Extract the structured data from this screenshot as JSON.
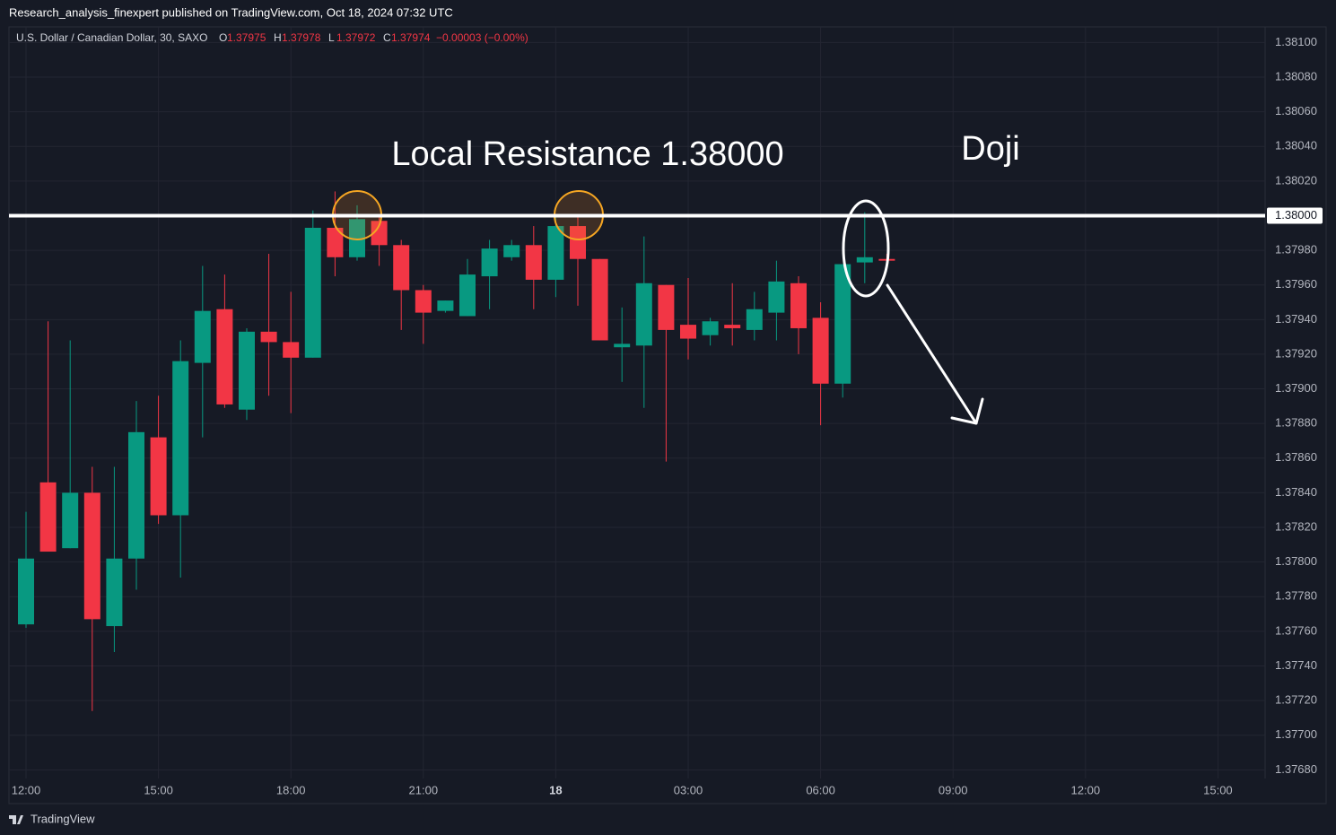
{
  "header": {
    "publisher": "Research_analysis_finexpert published on TradingView.com, Oct 18, 2024 07:32 UTC",
    "footer": "TradingView"
  },
  "chart_data": {
    "type": "candlestick",
    "symbol": "U.S. Dollar / Canadian Dollar, 30, SAXO",
    "ohlc_letters": [
      "O",
      "H",
      "L",
      "C"
    ],
    "change": "−0.00003 (−0.00%)",
    "annotations": [
      "Local Resistance 1.38000",
      "Doji"
    ],
    "resistance": {
      "value": 1.38,
      "label": "1.38000"
    },
    "up_color": "#089981",
    "down_color": "#f23645",
    "categories": [
      "12:00",
      null,
      null,
      null,
      null,
      null,
      "15:00",
      null,
      null,
      null,
      null,
      null,
      "18:00",
      null,
      null,
      null,
      null,
      null,
      "21:00",
      null,
      null,
      null,
      null,
      null,
      "18",
      null,
      null,
      null,
      null,
      null,
      "03:00",
      null,
      null,
      null,
      null,
      null,
      "06:00",
      null,
      null,
      null
    ],
    "future_labels": [
      "09:00",
      "12:00",
      "15:00"
    ],
    "open": [
      1.37764,
      1.37846,
      1.37808,
      1.3784,
      1.37763,
      1.37802,
      1.37872,
      1.37827,
      1.37915,
      1.37946,
      1.37888,
      1.37933,
      1.37927,
      1.37918,
      1.37993,
      1.37976,
      1.37997,
      1.37983,
      1.37957,
      1.37945,
      1.37942,
      1.37965,
      1.37976,
      1.37983,
      1.37963,
      1.37994,
      1.37975,
      1.37924,
      1.37925,
      1.3796,
      1.37937,
      1.37931,
      1.37937,
      1.37934,
      1.37944,
      1.37961,
      1.37941,
      1.37903,
      1.37973,
      1.37975
    ],
    "high": [
      1.37829,
      1.37939,
      1.37928,
      1.37855,
      1.37855,
      1.37893,
      1.37896,
      1.37928,
      1.37971,
      1.37966,
      1.37935,
      1.37978,
      1.37956,
      1.38003,
      1.38014,
      1.38006,
      1.38,
      1.37986,
      1.3796,
      1.37951,
      1.37975,
      1.37986,
      1.37986,
      1.37994,
      1.38,
      1.38001,
      1.37975,
      1.37947,
      1.37988,
      1.3796,
      1.37964,
      1.37941,
      1.37961,
      1.37956,
      1.37974,
      1.37965,
      1.3795,
      1.37972,
      1.38002,
      1.37978
    ],
    "low": [
      1.37762,
      1.37806,
      1.37808,
      1.37714,
      1.37748,
      1.37784,
      1.37822,
      1.37791,
      1.37872,
      1.37889,
      1.37882,
      1.37896,
      1.37886,
      1.37918,
      1.37965,
      1.37974,
      1.37971,
      1.37934,
      1.37926,
      1.37944,
      1.37942,
      1.37946,
      1.37974,
      1.37946,
      1.37953,
      1.37948,
      1.37928,
      1.37904,
      1.37889,
      1.37858,
      1.37917,
      1.37925,
      1.37925,
      1.37928,
      1.37928,
      1.3792,
      1.37879,
      1.37895,
      1.37961,
      1.37972
    ],
    "close": [
      1.37802,
      1.37806,
      1.3784,
      1.37767,
      1.37802,
      1.37875,
      1.37827,
      1.37916,
      1.37945,
      1.37891,
      1.37933,
      1.37927,
      1.37918,
      1.37993,
      1.37976,
      1.37998,
      1.37983,
      1.37957,
      1.37944,
      1.37951,
      1.37966,
      1.37981,
      1.37983,
      1.37963,
      1.37994,
      1.37975,
      1.37928,
      1.37926,
      1.37961,
      1.37934,
      1.37929,
      1.37939,
      1.37935,
      1.37946,
      1.37962,
      1.37935,
      1.37903,
      1.37972,
      1.37976,
      1.37974
    ],
    "ylim": [
      1.37675,
      1.38109
    ],
    "yticks": [
      {
        "value": 1.381,
        "label": "1.38100"
      },
      {
        "value": 1.3808,
        "label": "1.38080"
      },
      {
        "value": 1.3806,
        "label": "1.38060"
      },
      {
        "value": 1.3804,
        "label": "1.38040"
      },
      {
        "value": 1.3802,
        "label": "1.38020"
      },
      {
        "value": 1.38,
        "label": "1.38000"
      },
      {
        "value": 1.3798,
        "label": "1.37980"
      },
      {
        "value": 1.3796,
        "label": "1.37960"
      },
      {
        "value": 1.3794,
        "label": "1.37940"
      },
      {
        "value": 1.3792,
        "label": "1.37920"
      },
      {
        "value": 1.379,
        "label": "1.37900"
      },
      {
        "value": 1.3788,
        "label": "1.37880"
      },
      {
        "value": 1.3786,
        "label": "1.37860"
      },
      {
        "value": 1.3784,
        "label": "1.37840"
      },
      {
        "value": 1.3782,
        "label": "1.37820"
      },
      {
        "value": 1.378,
        "label": "1.37800"
      },
      {
        "value": 1.3778,
        "label": "1.37780"
      },
      {
        "value": 1.3776,
        "label": "1.37760"
      },
      {
        "value": 1.3774,
        "label": "1.37740"
      },
      {
        "value": 1.3772,
        "label": "1.37720"
      },
      {
        "value": 1.377,
        "label": "1.37700"
      },
      {
        "value": 1.3768,
        "label": "1.37680"
      }
    ],
    "grid": true
  }
}
